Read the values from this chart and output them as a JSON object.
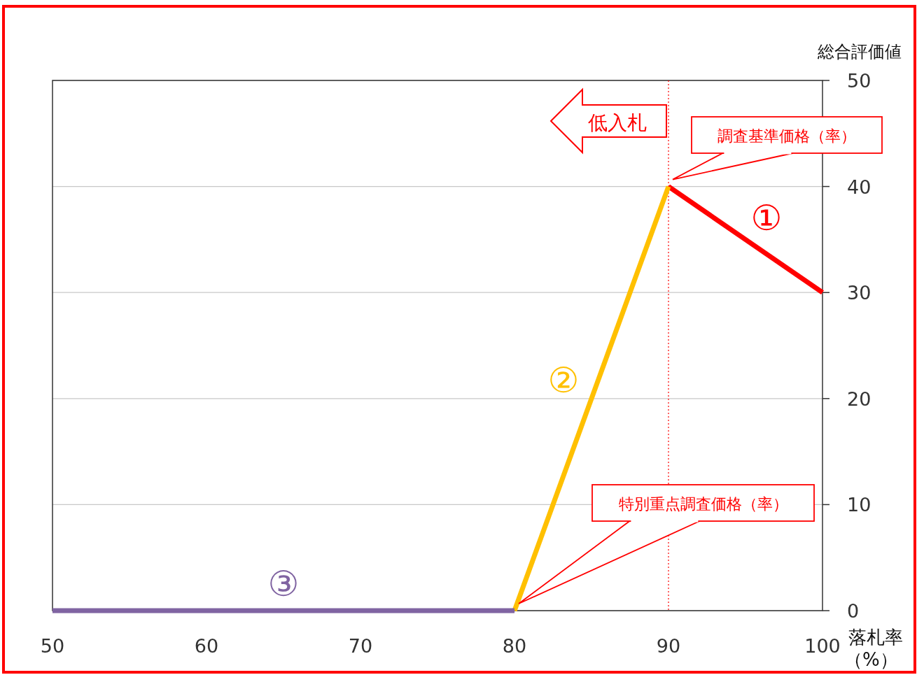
{
  "chart_data": {
    "type": "line",
    "xlabel": "落札率（%）",
    "ylabel": "総合評価値",
    "xlim": [
      50,
      100
    ],
    "xticks": [
      50,
      60,
      70,
      80,
      90,
      100
    ],
    "ylim": [
      0,
      50
    ],
    "yticks": [
      0,
      10,
      20,
      30,
      40,
      50
    ],
    "grid": "y",
    "series": [
      {
        "name": "①",
        "color": "#ff0000",
        "x": [
          90,
          100
        ],
        "values": [
          40,
          30
        ]
      },
      {
        "name": "②",
        "color": "#ffc000",
        "x": [
          80,
          90
        ],
        "values": [
          0,
          40
        ]
      },
      {
        "name": "③",
        "color": "#8064a2",
        "x": [
          50,
          80
        ],
        "values": [
          0,
          0
        ]
      }
    ],
    "ref_lines": [
      {
        "axis": "x",
        "value": 90,
        "color": "#ff0000",
        "line_style": "dotted"
      }
    ],
    "annotations": [
      "低入札",
      "調査基準価格（率）",
      "特別重点調査価格（率）"
    ]
  }
}
